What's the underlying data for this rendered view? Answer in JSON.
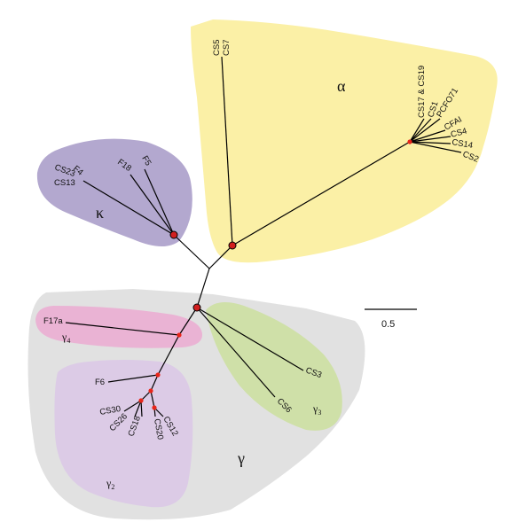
{
  "colors": {
    "alpha": "#fbf0a6",
    "kappa": "#b3a8cf",
    "gamma": "#e1e1e1",
    "gamma4": "#eab3d4",
    "gamma2": "#dccbe6",
    "gamma3": "#cfe0a8",
    "node_major": "#d21f1f",
    "node_minor": "#e8261a"
  },
  "clades": {
    "alpha": "α",
    "kappa": "κ",
    "gamma": "γ",
    "gamma_sub": "γ",
    "gamma4_index": "4",
    "gamma2_index": "2",
    "gamma3_index": "3"
  },
  "leaves": {
    "cs5": "CS5",
    "cs7": "CS7",
    "cs17_cs19": "CS17 & CS19",
    "cs1": "CS1",
    "pcfo71": "PCFO71",
    "cfai": "CFAI",
    "cs4": "CS4",
    "cs14": "CS14",
    "cs2": "CS2",
    "f4": "F4",
    "cs23": "CS23",
    "cs13": "CS13",
    "f18": "F18",
    "f5": "F5",
    "f17a": "F17a",
    "f6": "F6",
    "cs30": "CS30",
    "cs26": "CS26",
    "cs18": "CS18",
    "cs20": "CS20",
    "cs12": "CS12",
    "cs3": "CS3",
    "cs6": "CS6"
  },
  "scale": {
    "label": "0.5",
    "value": 0.5
  }
}
